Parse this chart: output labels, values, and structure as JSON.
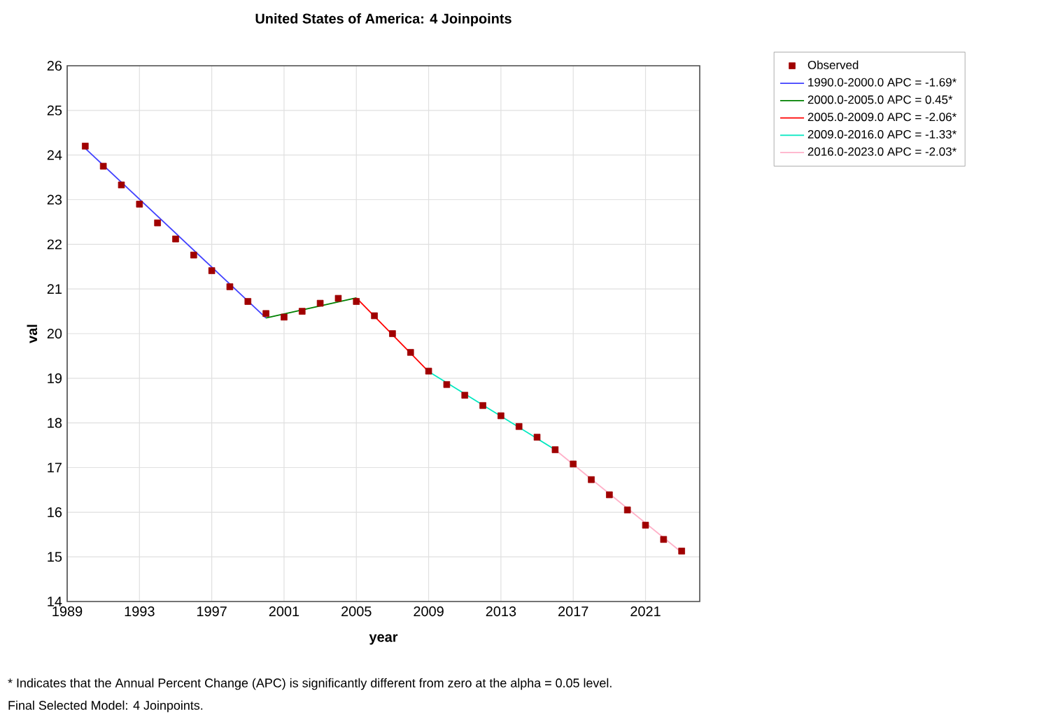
{
  "chart_data": {
    "type": "line",
    "title": "United States of America: 4 Joinpoints",
    "xlabel": "year",
    "ylabel": "val",
    "xlim": [
      1989,
      2024
    ],
    "xticks": [
      1989,
      1993,
      1997,
      2001,
      2005,
      2009,
      2013,
      2017,
      2021
    ],
    "ylim": [
      14,
      26
    ],
    "yticks": [
      14,
      15,
      16,
      17,
      18,
      19,
      20,
      21,
      22,
      23,
      24,
      25,
      26
    ],
    "grid": true,
    "legend": "top right",
    "line_style": "solid",
    "series": [
      {
        "name": "Observed",
        "type": "scatter",
        "marker": "square",
        "color": "#a00000",
        "x": [
          1990,
          1991,
          1992,
          1993,
          1994,
          1995,
          1996,
          1997,
          1998,
          1999,
          2000,
          2001,
          2002,
          2003,
          2004,
          2005,
          2006,
          2007,
          2008,
          2009,
          2010,
          2011,
          2012,
          2013,
          2014,
          2015,
          2016,
          2017,
          2018,
          2019,
          2020,
          2021,
          2022,
          2023
        ],
        "values": [
          24.2,
          23.75,
          23.33,
          22.9,
          22.48,
          22.12,
          21.76,
          21.41,
          21.05,
          20.72,
          20.45,
          20.37,
          20.5,
          20.68,
          20.79,
          20.72,
          20.4,
          20.0,
          19.58,
          19.16,
          18.86,
          18.62,
          18.39,
          18.16,
          17.92,
          17.68,
          17.4,
          17.08,
          16.73,
          16.39,
          16.05,
          15.71,
          15.39,
          15.13
        ]
      },
      {
        "name": "1990.0-2000.0 APC  = -1.69*",
        "color": "#4040ff",
        "x": [
          1990,
          2000
        ],
        "values": [
          24.15,
          20.35
        ]
      },
      {
        "name": "2000.0-2005.0 APC  =  0.45*",
        "color": "#008000",
        "x": [
          2000,
          2005
        ],
        "values": [
          20.35,
          20.8
        ]
      },
      {
        "name": "2005.0-2009.0 APC  = -2.06*",
        "color": "#ff0000",
        "x": [
          2005,
          2009
        ],
        "values": [
          20.8,
          19.15
        ]
      },
      {
        "name": "2009.0-2016.0 APC  = -1.33*",
        "color": "#00e8c0",
        "x": [
          2009,
          2016
        ],
        "values": [
          19.15,
          17.4
        ]
      },
      {
        "name": "2016.0-2023.0 APC  = -2.03*",
        "color": "#ffb0c8",
        "x": [
          2016,
          2023
        ],
        "values": [
          17.4,
          15.1
        ]
      }
    ],
    "annotations": [
      "* Indicates that the Annual Percent Change (APC) is significantly different from zero at the alpha = 0.05 level.",
      "Final Selected Model: 4 Joinpoints."
    ]
  }
}
